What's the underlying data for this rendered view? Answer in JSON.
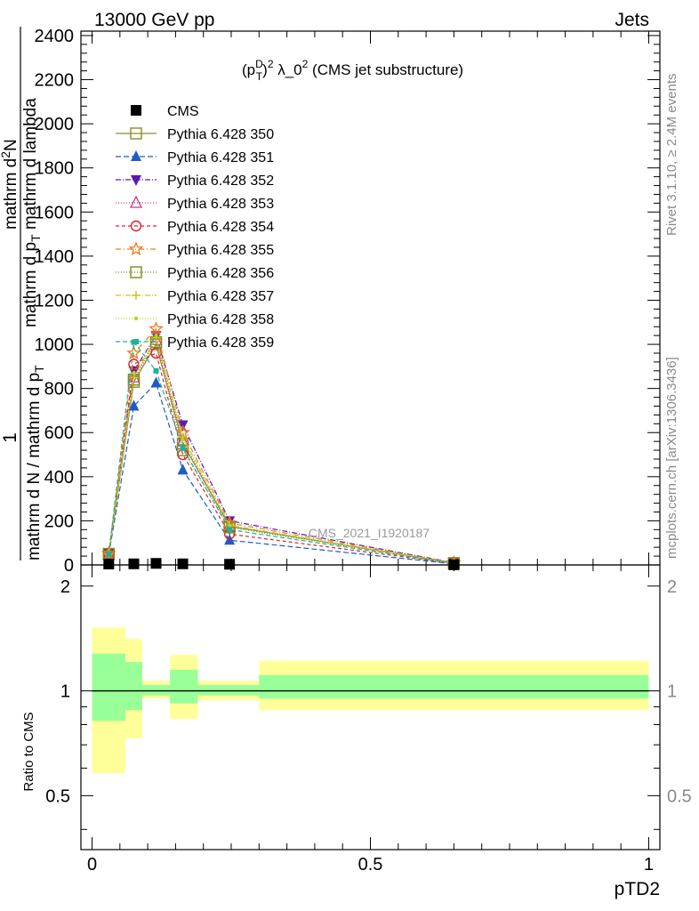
{
  "header": {
    "left": "13000 GeV pp",
    "right": "Jets"
  },
  "side_text": {
    "rivet": "Rivet 3.1.10, ≥ 2.4M events",
    "mcplots": "mcplots.cern.ch [arXiv:1306.3436]"
  },
  "watermark": "CMS_2021_I1920187",
  "chart_data": [
    {
      "type": "line",
      "title": "(p_T^D)^2 λ_0^2 (CMS jet substructure)",
      "title_parts": {
        "p": "(p",
        "sup_d": "D",
        "sub_t": "T",
        "mid": ")",
        "sup2": "2",
        "lam": " λ_0",
        "sup3": "2",
        "rest": " (CMS jet substructure)"
      },
      "xlabel": "pTD2",
      "ylabel": "1 / mathrm d N / mathrm d p_T mathrm d^2N / mathrm d p_T mathrm d lambda",
      "ylabel_parts": {
        "one": "1",
        "den_main": "mathrm d N / mathrm d p",
        "den_sub": "T",
        "num_a": "mathrm d",
        "num_sup": "2",
        "num_b": "N",
        "num_den_a": "mathrm d p",
        "num_den_sub": "T",
        "num_den_b": " mathrm d lambda"
      },
      "xlim": [
        -0.02,
        1.02
      ],
      "ylim": [
        0,
        2420
      ],
      "yticks": [
        0,
        200,
        400,
        600,
        800,
        1000,
        1200,
        1400,
        1600,
        1800,
        2000,
        2200,
        2400
      ],
      "ytick_labels": [
        "0",
        "200",
        "400",
        "600",
        "800",
        "1000",
        "1200",
        "1400",
        "1600",
        "1800",
        "2000",
        "2200",
        "2400"
      ],
      "x": [
        0.03,
        0.075,
        0.115,
        0.163,
        0.247,
        0.65
      ],
      "bin_edges": [
        0.0,
        0.06,
        0.09,
        0.14,
        0.19,
        0.3,
        1.0
      ],
      "series": [
        {
          "name": "CMS",
          "color": "#000000",
          "dash": "",
          "marker": "square-filled",
          "values": [
            4,
            5,
            7,
            5,
            3,
            0.5
          ]
        },
        {
          "name": "Pythia 6.428 350",
          "color": "#8c8c2e",
          "dash": "",
          "marker": "square-open",
          "values": [
            50,
            830,
            1000,
            550,
            175,
            8
          ]
        },
        {
          "name": "Pythia 6.428 351",
          "color": "#1f5cc4",
          "dash": "6,3",
          "marker": "triangle-up-filled",
          "values": [
            47,
            720,
            825,
            430,
            112,
            5
          ]
        },
        {
          "name": "Pythia 6.428 352",
          "color": "#5c1ab4",
          "dash": "6,2,1,2",
          "marker": "triangle-down-filled",
          "values": [
            53,
            880,
            1040,
            635,
            200,
            10
          ]
        },
        {
          "name": "Pythia 6.428 353",
          "color": "#c8388a",
          "dash": "1,2",
          "marker": "triangle-up-open",
          "values": [
            50,
            850,
            1020,
            560,
            175,
            8
          ]
        },
        {
          "name": "Pythia 6.428 354",
          "color": "#e0202a",
          "dash": "4,3",
          "marker": "circle-open",
          "values": [
            48,
            910,
            960,
            500,
            140,
            7
          ]
        },
        {
          "name": "Pythia 6.428 355",
          "color": "#f07a1a",
          "dash": "6,3,1,3",
          "marker": "star-open",
          "values": [
            52,
            960,
            1070,
            600,
            190,
            9
          ]
        },
        {
          "name": "Pythia 6.428 356",
          "color": "#7a8c1a",
          "dash": "1,2",
          "marker": "square-open",
          "values": [
            50,
            840,
            1010,
            520,
            170,
            8
          ]
        },
        {
          "name": "Pythia 6.428 357",
          "color": "#c8c81e",
          "dash": "6,2,1,2",
          "marker": "cross",
          "values": [
            50,
            850,
            1030,
            580,
            180,
            8
          ]
        },
        {
          "name": "Pythia 6.428 358",
          "color": "#b8d420",
          "dash": "1,2",
          "marker": "dot",
          "values": [
            50,
            870,
            1040,
            570,
            178,
            8
          ]
        },
        {
          "name": "Pythia 6.428 359",
          "color": "#1ab496",
          "dash": "5,3",
          "marker": "square-small-filled",
          "values": [
            48,
            1010,
            880,
            530,
            160,
            7
          ]
        }
      ]
    },
    {
      "type": "area",
      "ylabel": "Ratio to CMS",
      "xlabel": "pTD2",
      "xlim": [
        -0.02,
        1.02
      ],
      "ylim": [
        0.35,
        2.3
      ],
      "yticks": [
        0.5,
        1,
        2
      ],
      "ytick_labels": [
        "0.5",
        "1",
        "2"
      ],
      "xticks": [
        0,
        0.5,
        1
      ],
      "xtick_labels": [
        "0",
        "0.5",
        "1"
      ],
      "reference": 1,
      "bins": [
        0.0,
        0.06,
        0.09,
        0.14,
        0.19,
        0.3,
        1.0
      ],
      "band_outer": {
        "color": "#ffff99",
        "lo": [
          0.58,
          0.73,
          0.95,
          0.83,
          0.94,
          0.88
        ],
        "hi": [
          1.52,
          1.41,
          1.07,
          1.27,
          1.07,
          1.22
        ]
      },
      "band_inner": {
        "color": "#99ff99",
        "lo": [
          0.82,
          0.88,
          0.97,
          0.92,
          0.97,
          0.95
        ],
        "hi": [
          1.28,
          1.21,
          1.04,
          1.15,
          1.04,
          1.11
        ]
      }
    }
  ]
}
